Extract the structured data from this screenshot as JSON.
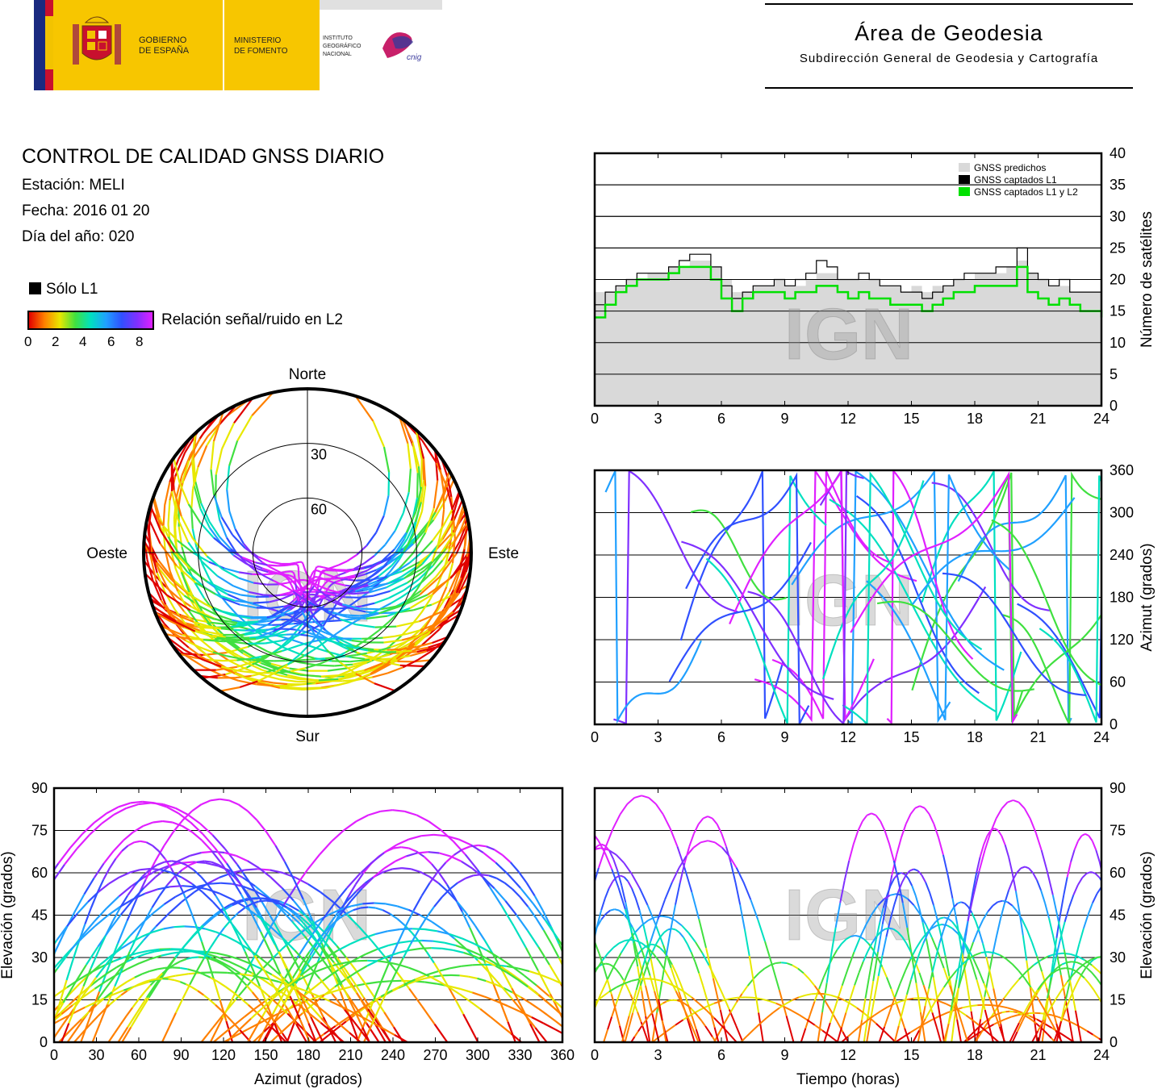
{
  "header": {
    "gov_line1": "GOBIERNO",
    "gov_line2": "DE ESPAÑA",
    "ministry_line1": "MINISTERIO",
    "ministry_line2": "DE FOMENTO",
    "ign_line1": "INSTITUTO",
    "ign_line2": "GEOGRÁFICO",
    "ign_line3": "NACIONAL",
    "cnig_logo_text": "cnig",
    "area_title": "Área de Geodesia",
    "area_subtitle": "Subdirección General de Geodesia y Cartografía"
  },
  "info": {
    "title": "CONTROL DE CALIDAD GNSS DIARIO",
    "station": "Estación: MELI",
    "date": "Fecha: 2016 01 20",
    "doy": "Día del año: 020",
    "legend_l1": "Sólo L1",
    "snr_label": "Relación señal/ruido en L2",
    "snr_ticks": [
      "0",
      "2",
      "4",
      "6",
      "8"
    ]
  },
  "colors": {
    "predicted_fill": "#d9d9d9",
    "l1_line": "#000000",
    "l1l2_line": "#00e000",
    "snr_scale": [
      "#e00000",
      "#ff8000",
      "#e8e800",
      "#40e040",
      "#00e0c0",
      "#20a0ff",
      "#3050ff",
      "#8030ff",
      "#e020ff"
    ]
  },
  "watermark": "IGN",
  "chart_data": [
    {
      "type": "area",
      "id": "sat-count",
      "ylabel": "Número de satélites",
      "xlim": [
        0,
        24
      ],
      "ylim": [
        0,
        40
      ],
      "xticks": [
        "0",
        "3",
        "6",
        "9",
        "12",
        "15",
        "18",
        "21",
        "24"
      ],
      "yticks": [
        "0",
        "5",
        "10",
        "15",
        "20",
        "25",
        "30",
        "35",
        "40"
      ],
      "grid": true,
      "legend_position": "top-right",
      "legend": [
        "GNSS predichos",
        "GNSS captados L1",
        "GNSS captados L1 y L2"
      ],
      "series": [
        {
          "name": "GNSS predichos",
          "x": [
            0,
            0.5,
            1,
            1.5,
            2,
            2.5,
            3,
            3.5,
            4,
            4.5,
            5,
            5.5,
            6,
            6.5,
            7,
            7.5,
            8,
            8.5,
            9,
            9.5,
            10,
            10.5,
            11,
            11.5,
            12,
            12.5,
            13,
            13.5,
            14,
            14.5,
            15,
            15.5,
            16,
            16.5,
            17,
            17.5,
            18,
            18.5,
            19,
            19.5,
            20,
            20.5,
            21,
            21.5,
            22,
            22.5,
            23,
            23.5,
            24
          ],
          "y": [
            18,
            18,
            19,
            20,
            20,
            21,
            21,
            22,
            22,
            23,
            23,
            22,
            20,
            18,
            18,
            19,
            19,
            20,
            19,
            19,
            20,
            21,
            21,
            20,
            20,
            20,
            20,
            19,
            19,
            18,
            19,
            18,
            19,
            19,
            20,
            20,
            21,
            21,
            21,
            22,
            23,
            21,
            20,
            19,
            19,
            18,
            18,
            18,
            18
          ]
        },
        {
          "name": "GNSS captados L1",
          "x": [
            0,
            0.5,
            1,
            1.5,
            2,
            2.5,
            3,
            3.5,
            4,
            4.5,
            5,
            5.5,
            6,
            6.5,
            7,
            7.5,
            8,
            8.5,
            9,
            9.5,
            10,
            10.5,
            11,
            11.5,
            12,
            12.5,
            13,
            13.5,
            14,
            14.5,
            15,
            15.5,
            16,
            16.5,
            17,
            17.5,
            18,
            18.5,
            19,
            19.5,
            20,
            20.5,
            21,
            21.5,
            22,
            22.5,
            23,
            23.5,
            24
          ],
          "y": [
            16,
            18,
            19,
            20,
            21,
            21,
            21,
            22,
            23,
            24,
            24,
            22,
            19,
            17,
            18,
            19,
            19,
            20,
            19,
            20,
            21,
            23,
            22,
            20,
            20,
            21,
            20,
            19,
            19,
            18,
            18,
            17,
            18,
            19,
            20,
            21,
            21,
            21,
            22,
            22,
            25,
            21,
            20,
            19,
            20,
            18,
            18,
            18,
            17
          ]
        },
        {
          "name": "GNSS captados L1 y L2",
          "x": [
            0,
            0.5,
            1,
            1.5,
            2,
            2.5,
            3,
            3.5,
            4,
            4.5,
            5,
            5.5,
            6,
            6.5,
            7,
            7.5,
            8,
            8.5,
            9,
            9.5,
            10,
            10.5,
            11,
            11.5,
            12,
            12.5,
            13,
            13.5,
            14,
            14.5,
            15,
            15.5,
            16,
            16.5,
            17,
            17.5,
            18,
            18.5,
            19,
            19.5,
            20,
            20.5,
            21,
            21.5,
            22,
            22.5,
            23,
            23.5,
            24
          ],
          "y": [
            14,
            16,
            18,
            19,
            20,
            20,
            20,
            21,
            22,
            22,
            22,
            20,
            17,
            15,
            17,
            18,
            18,
            18,
            17,
            18,
            18,
            19,
            19,
            18,
            17,
            18,
            17,
            17,
            16,
            16,
            16,
            15,
            16,
            17,
            18,
            18,
            19,
            19,
            19,
            19,
            22,
            18,
            17,
            16,
            17,
            16,
            15,
            15,
            14
          ]
        }
      ]
    },
    {
      "type": "scatter",
      "id": "azimuth-time",
      "ylabel": "Azimut (grados)",
      "xlim": [
        0,
        24
      ],
      "ylim": [
        0,
        360
      ],
      "xticks": [
        "0",
        "3",
        "6",
        "9",
        "12",
        "15",
        "18",
        "21",
        "24"
      ],
      "yticks": [
        "0",
        "60",
        "120",
        "180",
        "240",
        "300",
        "360"
      ],
      "grid": true
    },
    {
      "type": "scatter",
      "id": "elevation-azimuth",
      "xlabel": "Azimut (grados)",
      "ylabel": "Elevación (grados)",
      "xlim": [
        0,
        360
      ],
      "ylim": [
        0,
        90
      ],
      "xticks": [
        "0",
        "30",
        "60",
        "90",
        "120",
        "150",
        "180",
        "210",
        "240",
        "270",
        "300",
        "330",
        "360"
      ],
      "yticks": [
        "0",
        "15",
        "30",
        "45",
        "60",
        "75",
        "90"
      ],
      "grid": true
    },
    {
      "type": "scatter",
      "id": "elevation-time",
      "xlabel": "Tiempo (horas)",
      "ylabel": "Elevación (grados)",
      "xlim": [
        0,
        24
      ],
      "ylim": [
        0,
        90
      ],
      "xticks": [
        "0",
        "3",
        "6",
        "9",
        "12",
        "15",
        "18",
        "21",
        "24"
      ],
      "yticks": [
        "0",
        "15",
        "30",
        "45",
        "60",
        "75",
        "90"
      ],
      "grid": true
    },
    {
      "type": "scatter",
      "id": "skyplot",
      "labels": {
        "north": "Norte",
        "south": "Sur",
        "east": "Este",
        "west": "Oeste"
      },
      "ring_labels": [
        "30",
        "60"
      ]
    }
  ]
}
